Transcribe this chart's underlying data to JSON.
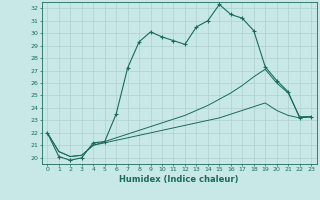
{
  "xlabel": "Humidex (Indice chaleur)",
  "ylabel": "",
  "background_color": "#c8e8e8",
  "grid_color": "#b0d0d0",
  "line_color": "#1a6b5a",
  "xlim": [
    -0.5,
    23.5
  ],
  "ylim": [
    19.5,
    32.5
  ],
  "xticks": [
    0,
    1,
    2,
    3,
    4,
    5,
    6,
    7,
    8,
    9,
    10,
    11,
    12,
    13,
    14,
    15,
    16,
    17,
    18,
    19,
    20,
    21,
    22,
    23
  ],
  "yticks": [
    20,
    21,
    22,
    23,
    24,
    25,
    26,
    27,
    28,
    29,
    30,
    31,
    32
  ],
  "line1_x": [
    0,
    1,
    2,
    3,
    4,
    5,
    6,
    7,
    8,
    9,
    10,
    11,
    12,
    13,
    14,
    15,
    16,
    17,
    18,
    19,
    20,
    21,
    22,
    23
  ],
  "line1_y": [
    22.0,
    20.1,
    19.8,
    20.0,
    21.2,
    21.3,
    23.5,
    27.2,
    29.3,
    30.1,
    29.7,
    29.4,
    29.1,
    30.5,
    31.0,
    32.3,
    31.5,
    31.2,
    30.2,
    27.3,
    26.2,
    25.3,
    23.2,
    23.3
  ],
  "line2_x": [
    0,
    1,
    2,
    3,
    4,
    5,
    6,
    7,
    8,
    9,
    10,
    11,
    12,
    13,
    14,
    15,
    16,
    17,
    18,
    19,
    20,
    21,
    22,
    23
  ],
  "line2_y": [
    22.0,
    20.5,
    20.1,
    20.2,
    21.0,
    21.3,
    21.6,
    21.9,
    22.2,
    22.5,
    22.8,
    23.1,
    23.4,
    23.8,
    24.2,
    24.7,
    25.2,
    25.8,
    26.5,
    27.1,
    26.0,
    25.2,
    23.3,
    23.3
  ],
  "line3_x": [
    0,
    1,
    2,
    3,
    4,
    5,
    6,
    7,
    8,
    9,
    10,
    11,
    12,
    13,
    14,
    15,
    16,
    17,
    18,
    19,
    20,
    21,
    22,
    23
  ],
  "line3_y": [
    22.0,
    20.5,
    20.1,
    20.2,
    21.0,
    21.2,
    21.4,
    21.6,
    21.8,
    22.0,
    22.2,
    22.4,
    22.6,
    22.8,
    23.0,
    23.2,
    23.5,
    23.8,
    24.1,
    24.4,
    23.8,
    23.4,
    23.2,
    23.3
  ]
}
